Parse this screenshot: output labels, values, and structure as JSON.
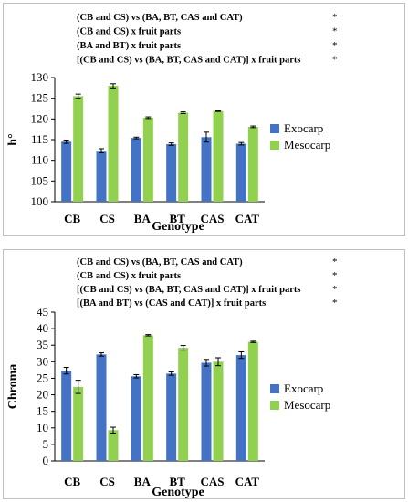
{
  "chart_data": [
    {
      "type": "bar",
      "annotations": [
        {
          "text": "(CB and CS) vs (BA, BT, CAS and CAT)",
          "mark": "*"
        },
        {
          "text": "(CB and CS) x fruit parts",
          "mark": "*"
        },
        {
          "text": "(BA and BT) x fruit parts",
          "mark": "*"
        },
        {
          "text": "[(CB and CS) vs (BA, BT, CAS and CAT)] x fruit parts",
          "mark": "*"
        }
      ],
      "categories": [
        "CB",
        "CS",
        "BA",
        "BT",
        "CAS",
        "CAT"
      ],
      "series": [
        {
          "name": "Exocarp",
          "values": [
            114.5,
            112.3,
            115.4,
            113.9,
            115.6,
            114.0
          ],
          "errors": [
            0.4,
            0.5,
            0.2,
            0.3,
            1.2,
            0.3
          ]
        },
        {
          "name": "Mesocarp",
          "values": [
            125.5,
            128.0,
            120.3,
            121.5,
            121.9,
            118.1
          ],
          "errors": [
            0.5,
            0.5,
            0.2,
            0.2,
            0.1,
            0.2
          ]
        }
      ],
      "ylabel": "h°",
      "xlabel": "Genotype",
      "ylim": [
        100,
        130
      ],
      "yticks": [
        100,
        105,
        110,
        115,
        120,
        125,
        130
      ],
      "legend": "right",
      "grid": false
    },
    {
      "type": "bar",
      "annotations": [
        {
          "text": "(CB and CS) vs (BA, BT, CAS and CAT)",
          "mark": "*"
        },
        {
          "text": "(CB and CS) x fruit parts",
          "mark": "*"
        },
        {
          "text": "[(CB and CS) vs (BA, BT, CAS and CAT)] x fruit parts",
          "mark": "*"
        },
        {
          "text": "[(BA and BT) vs (CAS and CAT)] x fruit parts",
          "mark": "*"
        }
      ],
      "categories": [
        "CB",
        "CS",
        "BA",
        "BT",
        "CAS",
        "CAT"
      ],
      "series": [
        {
          "name": "Exocarp",
          "values": [
            27.3,
            32.2,
            25.6,
            26.4,
            29.7,
            32.0
          ],
          "errors": [
            1.0,
            0.5,
            0.5,
            0.5,
            1.0,
            1.0
          ]
        },
        {
          "name": "Mesocarp",
          "values": [
            22.4,
            9.3,
            38.0,
            34.2,
            30.0,
            36.0
          ],
          "errors": [
            2.0,
            0.9,
            0.2,
            0.7,
            1.2,
            0.2
          ]
        }
      ],
      "ylabel": "Chroma",
      "xlabel": "Genotype",
      "ylim": [
        0,
        45
      ],
      "yticks": [
        0,
        5,
        10,
        15,
        20,
        25,
        30,
        35,
        40,
        45
      ],
      "legend": "right",
      "grid": false
    }
  ],
  "colors": {
    "Exocarp": "#4472c4",
    "Mesocarp": "#92d050"
  }
}
